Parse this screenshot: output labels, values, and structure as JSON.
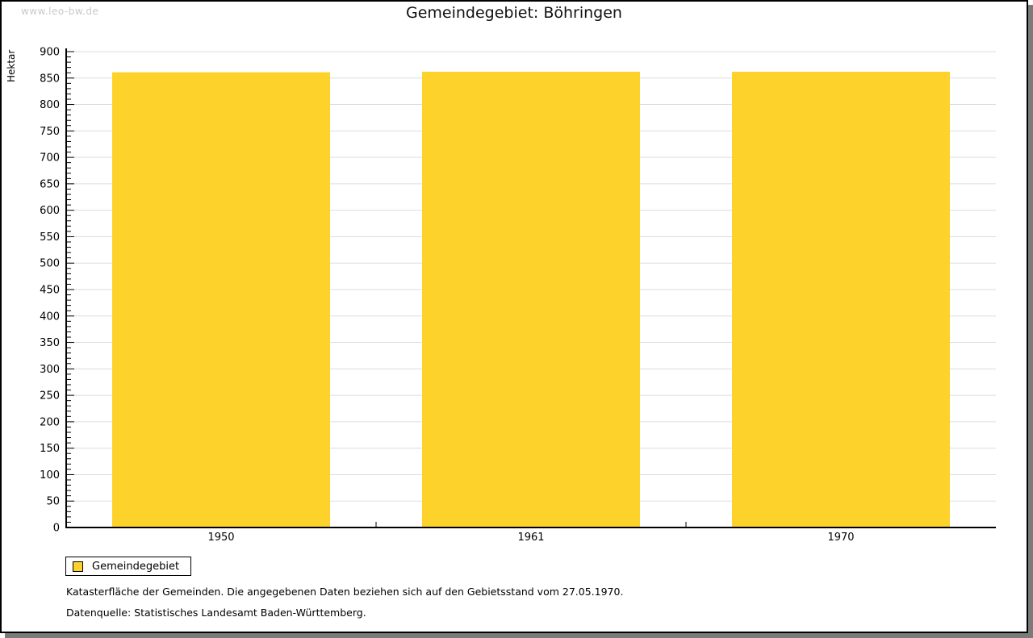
{
  "watermark": "www.leo-bw.de",
  "title": "Gemeindegebiet: Böhringen",
  "chart_data": {
    "type": "bar",
    "title": "Gemeindegebiet: Böhringen",
    "categories": [
      "1950",
      "1961",
      "1970"
    ],
    "series": [
      {
        "name": "Gemeindegebiet",
        "values": [
          861,
          862,
          862
        ]
      }
    ],
    "xlabel": "",
    "ylabel": "Hektar",
    "ylim": [
      0,
      900
    ],
    "ytick_major_step": 50,
    "ytick_minor_step": 10,
    "grid": true,
    "legend_position": "bottom-left",
    "bar_color": "#FDD32B"
  },
  "legend": {
    "items": [
      {
        "label": "Gemeindegebiet",
        "color": "#FDD32B"
      }
    ]
  },
  "footnotes": [
    "Katasterfläche der Gemeinden. Die angegebenen Daten beziehen sich auf den Gebietsstand vom 27.05.1970.",
    "Datenquelle: Statistisches Landesamt Baden-Württemberg."
  ],
  "colors": {
    "bar": "#FDD32B",
    "gridline": "#dddddd",
    "axis": "#000000",
    "watermark": "#c9c9c9",
    "shadow": "#7b7b7b",
    "text": "#000000"
  }
}
